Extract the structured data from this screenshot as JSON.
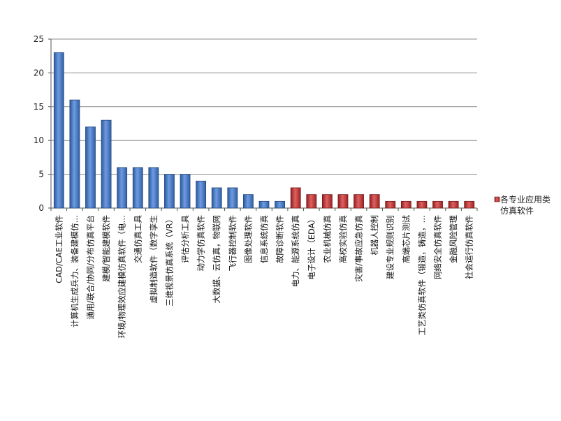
{
  "chart_data": {
    "type": "bar",
    "title": "",
    "xlabel": "",
    "ylabel": "",
    "ylim": [
      0,
      25
    ],
    "yticks": [
      0,
      5,
      10,
      15,
      20,
      25
    ],
    "grid": true,
    "legend_position": "right",
    "categories": [
      "CAD/CAE工业软件",
      "计算机生成兵力、装备建模仿…",
      "通用/联合/协同/分布仿真平台",
      "建模/智能建模软件",
      "环境/物理效应建模仿真软件（电…",
      "交通仿真工具",
      "虚拟制造软件（数字孪生",
      "三维视景仿真系统（VR）",
      "评估分析工具",
      "动力学仿真软件",
      "大数据、云仿真，物联网",
      "飞行器控制软件",
      "图像处理软件",
      "信息系统仿真",
      "故障诊断软件",
      "电力、能源系统仿真",
      "电子设计（EDA）",
      "农业机械仿真",
      "高校实验仿真",
      "灾害/事故应急仿真",
      "机器人控制",
      "建设专业规则识别",
      "高端芯片测试",
      "工艺类仿真软件（锻造，铸造，…",
      "网络安全仿真软件",
      "金融风险管理",
      "社会运行仿真软件"
    ],
    "values": [
      23,
      16,
      12,
      13,
      6,
      6,
      6,
      5,
      5,
      4,
      3,
      3,
      2,
      1,
      1,
      3,
      2,
      2,
      2,
      2,
      2,
      1,
      1,
      1,
      1,
      1,
      1
    ],
    "groups": [
      "blue",
      "blue",
      "blue",
      "blue",
      "blue",
      "blue",
      "blue",
      "blue",
      "blue",
      "blue",
      "blue",
      "blue",
      "blue",
      "blue",
      "blue",
      "red",
      "red",
      "red",
      "red",
      "red",
      "red",
      "red",
      "red",
      "red",
      "red",
      "red",
      "red"
    ],
    "colors": {
      "blue": "#4a7ec8",
      "red": "#c0392b"
    },
    "legend": {
      "label_line1": "各专业应用类",
      "label_line2": "仿真软件",
      "color": "#c0392b"
    }
  }
}
